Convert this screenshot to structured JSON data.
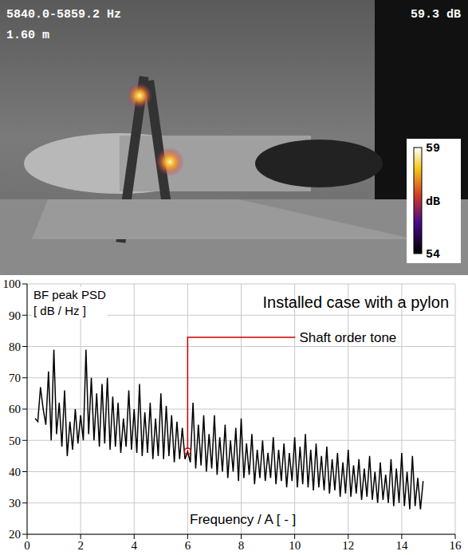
{
  "image_panel": {
    "frequency_band": "5840.0-5859.2 Hz",
    "distance": "1.60 m",
    "peak_level": "59.3 dB",
    "colorbar": {
      "label": "dB",
      "range": [
        54,
        59
      ],
      "ticks": [
        54,
        59
      ]
    }
  },
  "chart_data": {
    "type": "line",
    "title": "Installed case with a pylon",
    "y_label": "BF peak PSD [ dB / Hz ]",
    "x_label": "Frequency / A [ - ]",
    "color": "#000000",
    "grid": true,
    "xlim": [
      0,
      16
    ],
    "xticks": [
      0,
      2,
      4,
      6,
      8,
      10,
      12,
      14,
      16
    ],
    "ylim": [
      20,
      100
    ],
    "yticks": [
      20,
      30,
      40,
      50,
      60,
      70,
      80,
      90,
      100
    ],
    "annotations": [
      {
        "text": "Shaft order tone",
        "x": 6,
        "y": 46.5,
        "color": "#cc0000"
      }
    ],
    "x": [
      0.3,
      0.4,
      0.5,
      0.6,
      0.7,
      0.8,
      0.9,
      1.0,
      1.1,
      1.2,
      1.3,
      1.4,
      1.5,
      1.6,
      1.7,
      1.8,
      1.9,
      2.0,
      2.1,
      2.2,
      2.3,
      2.4,
      2.5,
      2.6,
      2.7,
      2.8,
      2.9,
      3.0,
      3.1,
      3.2,
      3.3,
      3.4,
      3.5,
      3.6,
      3.7,
      3.8,
      3.9,
      4.0,
      4.1,
      4.2,
      4.3,
      4.4,
      4.5,
      4.6,
      4.7,
      4.8,
      4.9,
      5.0,
      5.1,
      5.2,
      5.3,
      5.4,
      5.5,
      5.6,
      5.7,
      5.8,
      5.9,
      6.0,
      6.1,
      6.2,
      6.3,
      6.4,
      6.5,
      6.6,
      6.7,
      6.8,
      6.9,
      7.0,
      7.1,
      7.2,
      7.3,
      7.4,
      7.5,
      7.6,
      7.7,
      7.8,
      7.9,
      8.0,
      8.1,
      8.2,
      8.3,
      8.4,
      8.5,
      8.6,
      8.7,
      8.8,
      8.9,
      9.0,
      9.1,
      9.2,
      9.3,
      9.4,
      9.5,
      9.6,
      9.7,
      9.8,
      9.9,
      10.0,
      10.1,
      10.2,
      10.3,
      10.4,
      10.5,
      10.6,
      10.7,
      10.8,
      10.9,
      11.0,
      11.1,
      11.2,
      11.3,
      11.4,
      11.5,
      11.6,
      11.7,
      11.8,
      11.9,
      12.0,
      12.1,
      12.2,
      12.3,
      12.4,
      12.5,
      12.6,
      12.7,
      12.8,
      12.9,
      13.0,
      13.1,
      13.2,
      13.3,
      13.4,
      13.5,
      13.6,
      13.7,
      13.8,
      13.9,
      14.0,
      14.1,
      14.2,
      14.3,
      14.4,
      14.5,
      14.6,
      14.7,
      14.8
    ],
    "values": [
      57,
      56,
      67,
      60,
      55,
      72,
      50,
      79,
      52,
      62,
      48,
      66,
      45,
      56,
      47,
      60,
      49,
      58,
      50,
      79,
      52,
      70,
      50,
      65,
      48,
      68,
      49,
      70,
      47,
      64,
      48,
      62,
      46,
      57,
      48,
      66,
      47,
      60,
      46,
      68,
      45,
      59,
      46,
      62,
      44,
      57,
      45,
      65,
      44,
      61,
      45,
      58,
      43,
      56,
      44,
      54,
      44,
      46.5,
      43,
      62,
      41,
      55,
      42,
      58,
      40,
      52,
      41,
      58,
      39,
      51,
      40,
      55,
      38,
      50,
      40,
      54,
      37,
      57,
      38,
      49,
      39,
      52,
      36,
      47,
      38,
      50,
      37,
      46,
      38,
      51,
      36,
      47,
      37,
      49,
      35,
      46,
      37,
      51,
      35,
      48,
      36,
      52,
      35,
      47,
      34,
      49,
      35,
      45,
      34,
      48,
      33,
      44,
      34,
      46,
      32,
      43,
      33,
      47,
      32,
      42,
      33,
      44,
      31,
      41,
      32,
      45,
      31,
      40,
      30,
      43,
      31,
      39,
      30,
      44,
      29,
      41,
      30,
      46,
      29,
      40,
      28,
      45,
      29,
      38,
      28,
      37
    ]
  }
}
